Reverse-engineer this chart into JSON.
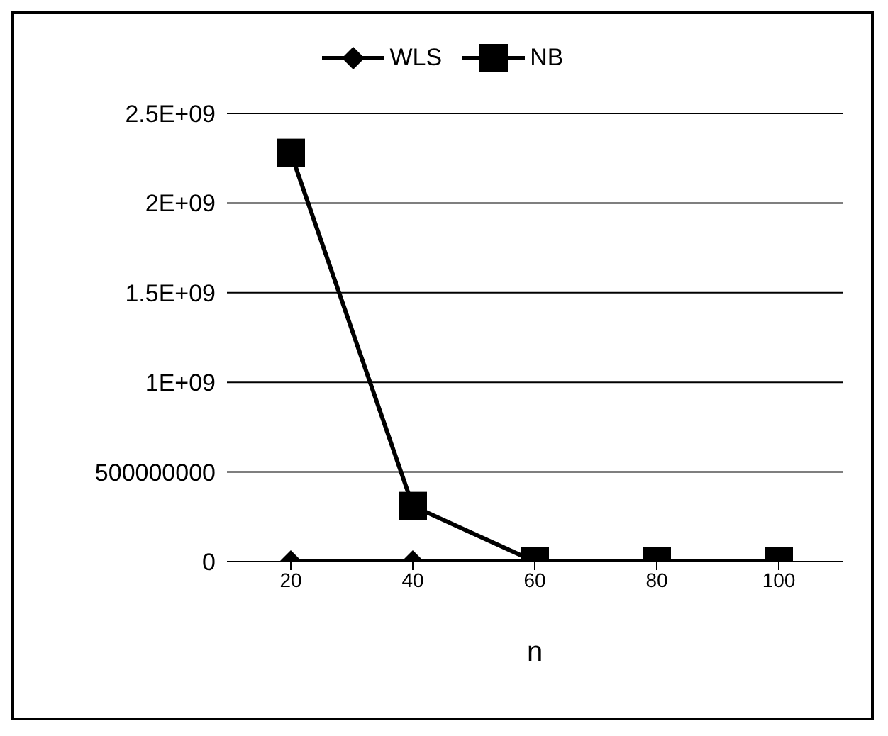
{
  "chart_data": {
    "type": "line",
    "xlabel": "n",
    "categories": [
      "20",
      "40",
      "60",
      "80",
      "100"
    ],
    "series": [
      {
        "name": "WLS",
        "color": "#000000",
        "marker": "diamond",
        "values": [
          0,
          0,
          0,
          0,
          0
        ]
      },
      {
        "name": "NB",
        "color": "#000000",
        "marker": "square",
        "values": [
          2280000000,
          310000000,
          0,
          0,
          0
        ]
      }
    ],
    "ylim": [
      0,
      2500000000
    ],
    "yticks": [
      0,
      500000000,
      {
        "value": 1000000000,
        "label": "1E+09"
      },
      {
        "value": 1500000000,
        "label": "1.5E+09"
      },
      {
        "value": 2000000000,
        "label": "2E+09"
      },
      {
        "value": 2500000000,
        "label": "2.5E+09"
      }
    ],
    "grid": "y",
    "legend": "top"
  }
}
